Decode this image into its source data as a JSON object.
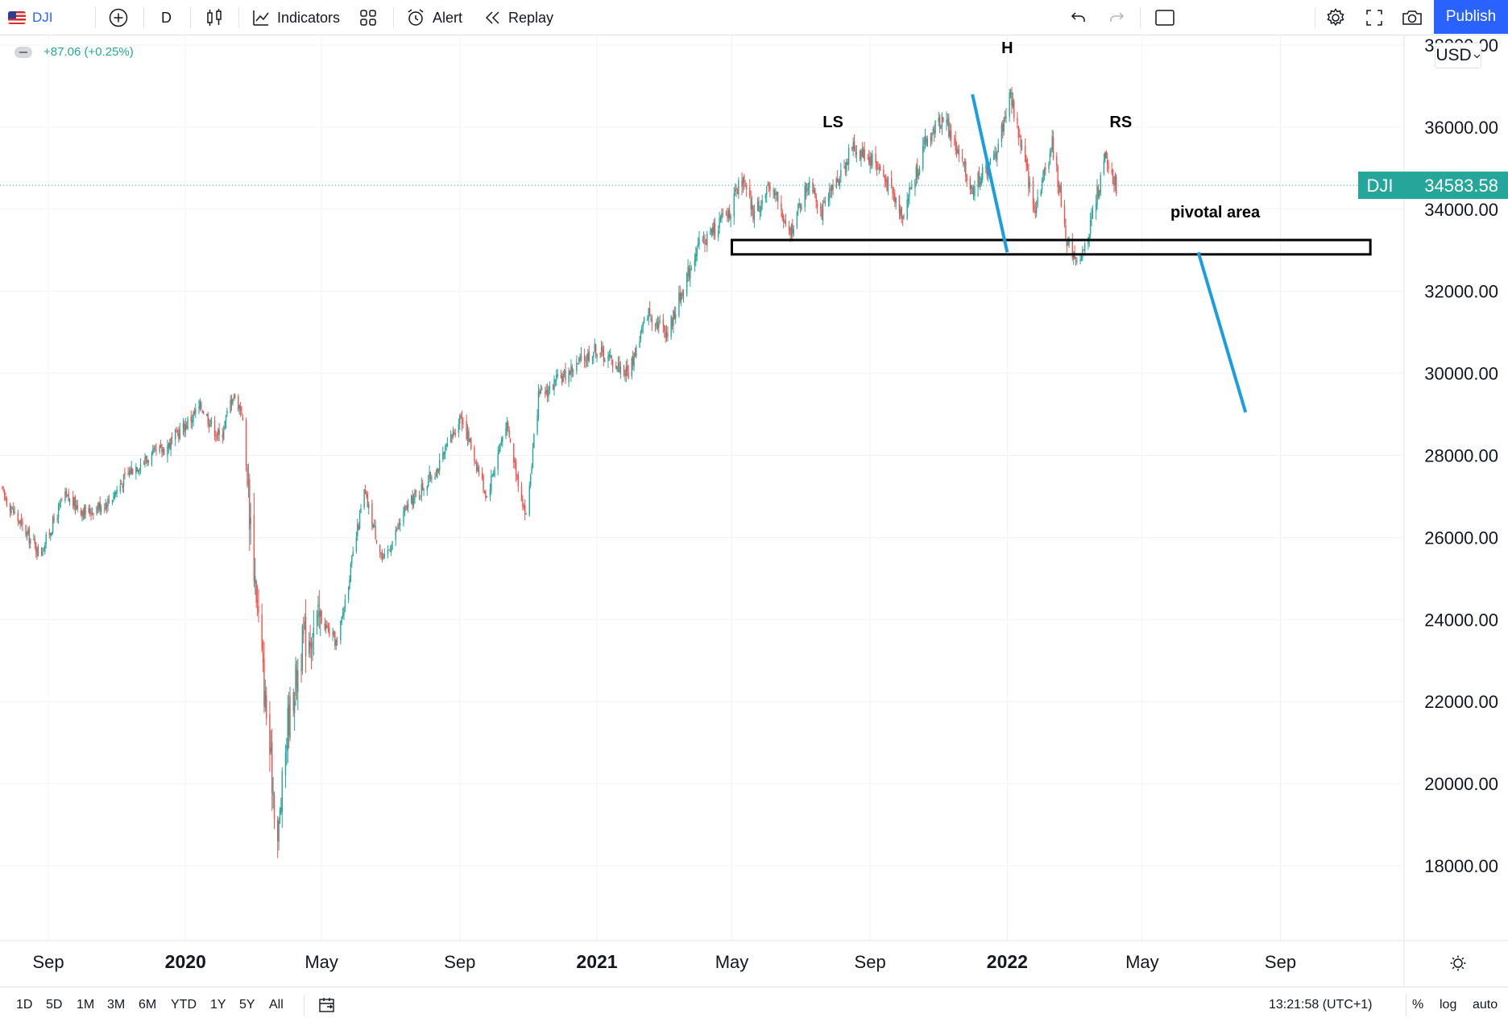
{
  "toolbar": {
    "symbol": "DJI",
    "interval": "D",
    "indicators_label": "Indicators",
    "alert_label": "Alert",
    "replay_label": "Replay",
    "publish_label": "Publish"
  },
  "legend": {
    "change": "+87.06 (+0.25%)"
  },
  "currency": "USD",
  "price_label": {
    "symbol": "DJI",
    "price": "34583.58",
    "price_value": 34583.58
  },
  "colors": {
    "up": "#26a69a",
    "down": "#ef5350",
    "annotation_blue": "#1a9ee0",
    "accent": "#2962ff"
  },
  "chart_data": {
    "type": "candlestick",
    "symbol": "DJI",
    "interval": "D",
    "ylim": [
      16200,
      38200
    ],
    "y_ticks": [
      18000,
      20000,
      22000,
      24000,
      26000,
      28000,
      30000,
      32000,
      34000,
      36000,
      38000
    ],
    "y_tick_labels": [
      "18000.00",
      "20000.00",
      "22000.00",
      "24000.00",
      "26000.00",
      "28000.00",
      "30000.00",
      "32000.00",
      "34000.00",
      "36000.00",
      "38000.00"
    ],
    "x_range": [
      "2019-07-20",
      "2022-12-20"
    ],
    "x_ticks": [
      {
        "date": "2019-09-01",
        "label": "Sep",
        "major": false
      },
      {
        "date": "2020-01-01",
        "label": "2020",
        "major": true
      },
      {
        "date": "2020-05-01",
        "label": "May",
        "major": false
      },
      {
        "date": "2020-09-01",
        "label": "Sep",
        "major": false
      },
      {
        "date": "2021-01-01",
        "label": "2021",
        "major": true
      },
      {
        "date": "2021-05-01",
        "label": "May",
        "major": false
      },
      {
        "date": "2021-09-01",
        "label": "Sep",
        "major": false
      },
      {
        "date": "2022-01-01",
        "label": "2022",
        "major": true
      },
      {
        "date": "2022-05-01",
        "label": "May",
        "major": false
      },
      {
        "date": "2022-09-01",
        "label": "Sep",
        "major": false
      }
    ],
    "last_price": 34583.58,
    "price_path": [
      [
        "2019-07-20",
        27200
      ],
      [
        "2019-08-10",
        26200
      ],
      [
        "2019-08-25",
        25600
      ],
      [
        "2019-09-15",
        27000
      ],
      [
        "2019-10-05",
        26600
      ],
      [
        "2019-10-25",
        26900
      ],
      [
        "2019-11-15",
        27700
      ],
      [
        "2019-12-15",
        28200
      ],
      [
        "2020-01-15",
        29200
      ],
      [
        "2020-02-01",
        28400
      ],
      [
        "2020-02-12",
        29500
      ],
      [
        "2020-02-20",
        29100
      ],
      [
        "2020-03-01",
        25700
      ],
      [
        "2020-03-12",
        22000
      ],
      [
        "2020-03-23",
        18600
      ],
      [
        "2020-04-01",
        21500
      ],
      [
        "2020-04-15",
        23500
      ],
      [
        "2020-05-01",
        24000
      ],
      [
        "2020-05-15",
        23400
      ],
      [
        "2020-06-08",
        27100
      ],
      [
        "2020-06-25",
        25400
      ],
      [
        "2020-07-15",
        26700
      ],
      [
        "2020-08-15",
        27800
      ],
      [
        "2020-09-02",
        29000
      ],
      [
        "2020-09-25",
        27000
      ],
      [
        "2020-10-12",
        28800
      ],
      [
        "2020-10-30",
        26500
      ],
      [
        "2020-11-10",
        29400
      ],
      [
        "2020-12-01",
        29900
      ],
      [
        "2020-12-31",
        30600
      ],
      [
        "2021-01-29",
        30000
      ],
      [
        "2021-02-15",
        31500
      ],
      [
        "2021-03-05",
        31000
      ],
      [
        "2021-03-30",
        33000
      ],
      [
        "2021-04-30",
        34000
      ],
      [
        "2021-05-10",
        34700
      ],
      [
        "2021-05-20",
        33900
      ],
      [
        "2021-06-07",
        34600
      ],
      [
        "2021-06-20",
        33300
      ],
      [
        "2021-07-10",
        34800
      ],
      [
        "2021-07-20",
        33900
      ],
      [
        "2021-08-16",
        35500
      ],
      [
        "2021-09-05",
        35200
      ],
      [
        "2021-09-30",
        33900
      ],
      [
        "2021-10-20",
        35600
      ],
      [
        "2021-11-05",
        36300
      ],
      [
        "2021-11-30",
        34500
      ],
      [
        "2021-12-20",
        35200
      ],
      [
        "2022-01-04",
        36800
      ],
      [
        "2022-01-25",
        34000
      ],
      [
        "2022-02-10",
        35600
      ],
      [
        "2022-02-24",
        33100
      ],
      [
        "2022-03-08",
        32700
      ],
      [
        "2022-03-29",
        35200
      ],
      [
        "2022-04-05",
        34800
      ],
      [
        "2022-04-08",
        34583
      ]
    ],
    "annotations": {
      "labels": [
        {
          "text": "LS",
          "date": "2021-07-30",
          "price": 36000
        },
        {
          "text": "H",
          "date": "2022-01-01",
          "price": 37800
        },
        {
          "text": "RS",
          "date": "2022-04-12",
          "price": 36000
        },
        {
          "text": "pivotal area",
          "date": "2022-07-05",
          "price": 33800
        }
      ],
      "rectangle": {
        "date_start": "2021-05-01",
        "date_end": "2022-11-20",
        "price_top": 33250,
        "price_bottom": 32900
      },
      "lines": [
        {
          "from": [
            "2021-12-01",
            36800
          ],
          "to": [
            "2022-01-01",
            32950
          ]
        },
        {
          "from": [
            "2022-06-20",
            32950
          ],
          "to": [
            "2022-08-01",
            29050
          ]
        }
      ]
    }
  },
  "bottom": {
    "ranges": [
      "1D",
      "5D",
      "1M",
      "3M",
      "6M",
      "YTD",
      "1Y",
      "5Y",
      "All"
    ],
    "time": "13:21:58 (UTC+1)",
    "percent": "%",
    "log": "log",
    "auto": "auto"
  }
}
